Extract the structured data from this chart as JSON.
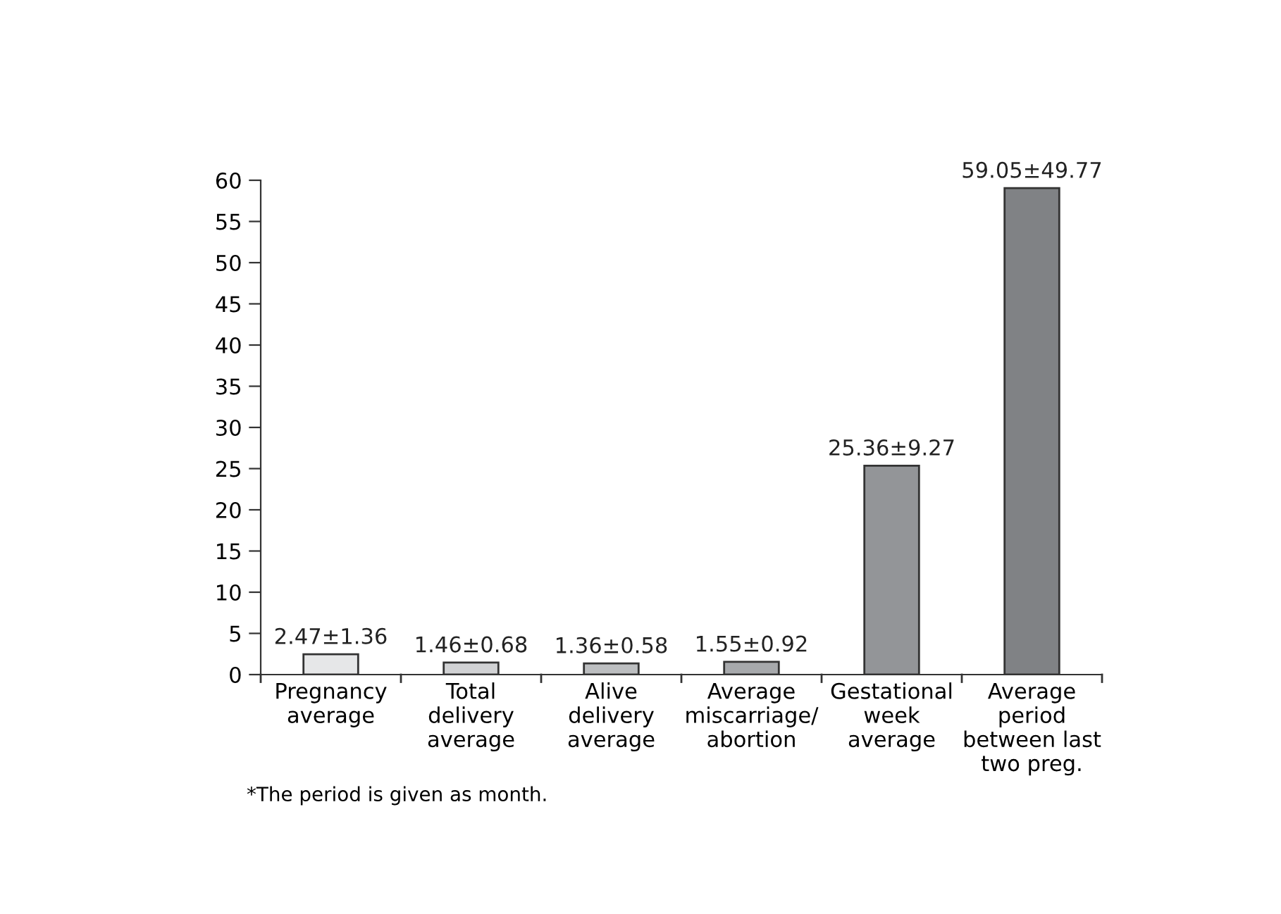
{
  "chart_data": {
    "type": "bar",
    "categories": [
      "Pregnancy\naverage",
      "Total\ndelivery\naverage",
      "Alive\ndelivery\naverage",
      "Average\nmiscarriage/\nabortion",
      "Gestational\nweek\naverage",
      "Average\nperiod\nbetween last\ntwo preg."
    ],
    "values": [
      2.47,
      1.46,
      1.36,
      1.55,
      25.36,
      59.05
    ],
    "colors": [
      "#e6e7e8",
      "#d1d2d4",
      "#bcbec0",
      "#a7a9ac",
      "#939598",
      "#808285"
    ],
    "value_labels": [
      "2.47±1.36",
      "1.46±0.68",
      "1.36±0.58",
      "1.55±0.92",
      "25.36±9.27",
      "59.05±49.77"
    ],
    "ylim": [
      0,
      60
    ],
    "yticks": [
      0,
      5,
      10,
      15,
      20,
      25,
      30,
      35,
      40,
      45,
      50,
      55,
      60
    ],
    "grid": false,
    "annotations": [
      "*The period is given as month."
    ]
  }
}
